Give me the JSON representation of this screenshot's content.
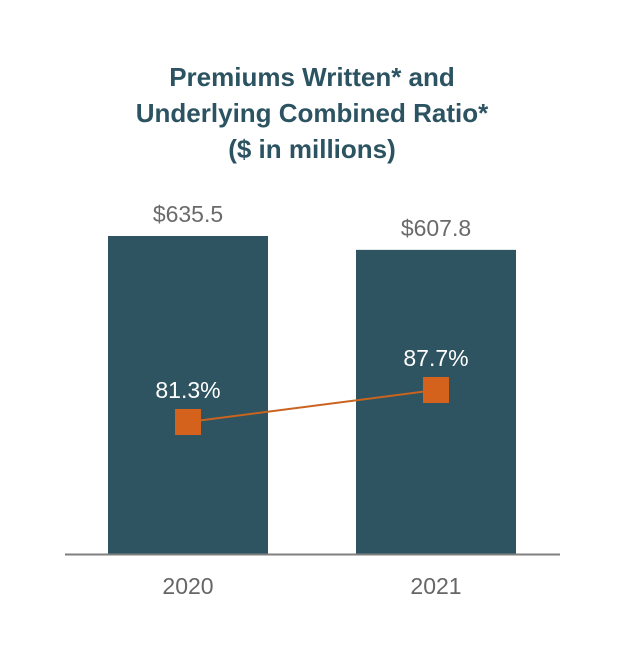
{
  "chart_data": {
    "type": "bar",
    "title_lines": [
      "Premiums Written* and",
      "Underlying Combined Ratio*",
      "($ in millions)"
    ],
    "categories": [
      "2020",
      "2021"
    ],
    "series": [
      {
        "name": "Premiums Written*",
        "type": "bar",
        "values": [
          635.5,
          607.8
        ],
        "labels": [
          "$635.5",
          "$607.8"
        ]
      },
      {
        "name": "Underlying Combined Ratio*",
        "type": "line",
        "values": [
          81.3,
          87.7
        ],
        "labels": [
          "81.3%",
          "87.7%"
        ]
      }
    ],
    "ylim": [
      0,
      635.5
    ],
    "ratio_ylim": [
      50,
      100
    ],
    "grid": false,
    "legend": "none"
  },
  "colors": {
    "bar": "#2e5361",
    "marker": "#d4621d",
    "line": "#c8641e",
    "title": "#2c5361",
    "value_label": "#6a6a6a",
    "axis": "#7f7f7f",
    "axis_label": "#666666",
    "ratio_label": "#ffffff"
  }
}
